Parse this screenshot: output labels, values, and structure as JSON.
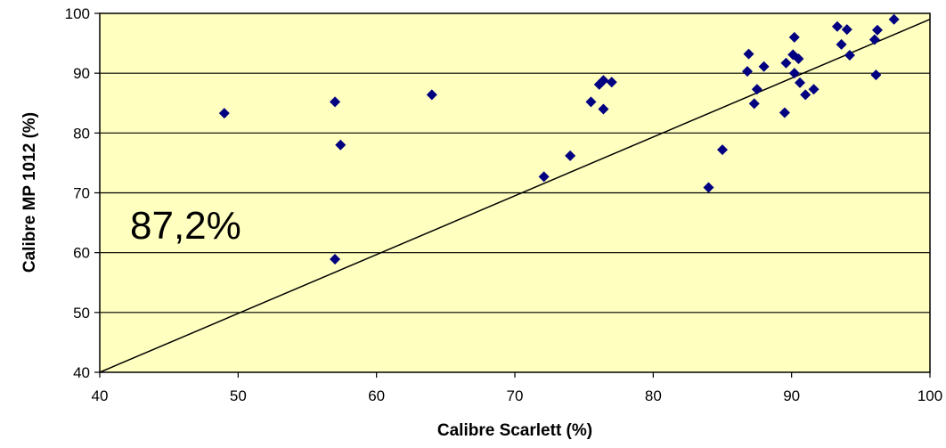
{
  "chart_data": {
    "type": "scatter",
    "xlabel": "Calibre Scarlett (%)",
    "ylabel": "Calibre MP 1012 (%)",
    "xlim": [
      40,
      100
    ],
    "ylim": [
      40,
      100
    ],
    "x_ticks": [
      "40",
      "50",
      "60",
      "70",
      "80",
      "90",
      "100"
    ],
    "y_ticks": [
      "40",
      "50",
      "60",
      "70",
      "80",
      "90",
      "100"
    ],
    "grid": "horizontal",
    "legend": "none",
    "annotation": "87,2%",
    "reference_line": {
      "from": [
        40,
        40
      ],
      "to": [
        100,
        99
      ]
    },
    "colors": {
      "plot_background": "#FFFFC0",
      "marker": "#000080",
      "line": "#000000"
    },
    "points": [
      {
        "x": 49.0,
        "y": 83.3
      },
      {
        "x": 57.0,
        "y": 85.2
      },
      {
        "x": 57.4,
        "y": 78.0
      },
      {
        "x": 57.0,
        "y": 58.9
      },
      {
        "x": 64.0,
        "y": 86.4
      },
      {
        "x": 72.1,
        "y": 72.7
      },
      {
        "x": 74.0,
        "y": 76.2
      },
      {
        "x": 75.5,
        "y": 85.2
      },
      {
        "x": 76.1,
        "y": 88.1
      },
      {
        "x": 76.4,
        "y": 88.8
      },
      {
        "x": 76.4,
        "y": 84.0
      },
      {
        "x": 77.0,
        "y": 88.5
      },
      {
        "x": 84.0,
        "y": 70.9
      },
      {
        "x": 85.0,
        "y": 77.2
      },
      {
        "x": 86.8,
        "y": 90.3
      },
      {
        "x": 86.9,
        "y": 93.2
      },
      {
        "x": 87.3,
        "y": 84.9
      },
      {
        "x": 87.5,
        "y": 87.3
      },
      {
        "x": 88.0,
        "y": 91.1
      },
      {
        "x": 89.5,
        "y": 83.4
      },
      {
        "x": 89.6,
        "y": 91.7
      },
      {
        "x": 90.1,
        "y": 93.1
      },
      {
        "x": 90.2,
        "y": 90.0
      },
      {
        "x": 90.2,
        "y": 96.0
      },
      {
        "x": 90.5,
        "y": 92.4
      },
      {
        "x": 90.6,
        "y": 88.4
      },
      {
        "x": 91.0,
        "y": 86.4
      },
      {
        "x": 91.6,
        "y": 87.3
      },
      {
        "x": 93.3,
        "y": 97.8
      },
      {
        "x": 93.6,
        "y": 94.8
      },
      {
        "x": 94.0,
        "y": 97.3
      },
      {
        "x": 94.2,
        "y": 93.0
      },
      {
        "x": 96.0,
        "y": 95.6
      },
      {
        "x": 96.1,
        "y": 89.7
      },
      {
        "x": 96.2,
        "y": 97.2
      },
      {
        "x": 97.4,
        "y": 99.0
      }
    ]
  }
}
